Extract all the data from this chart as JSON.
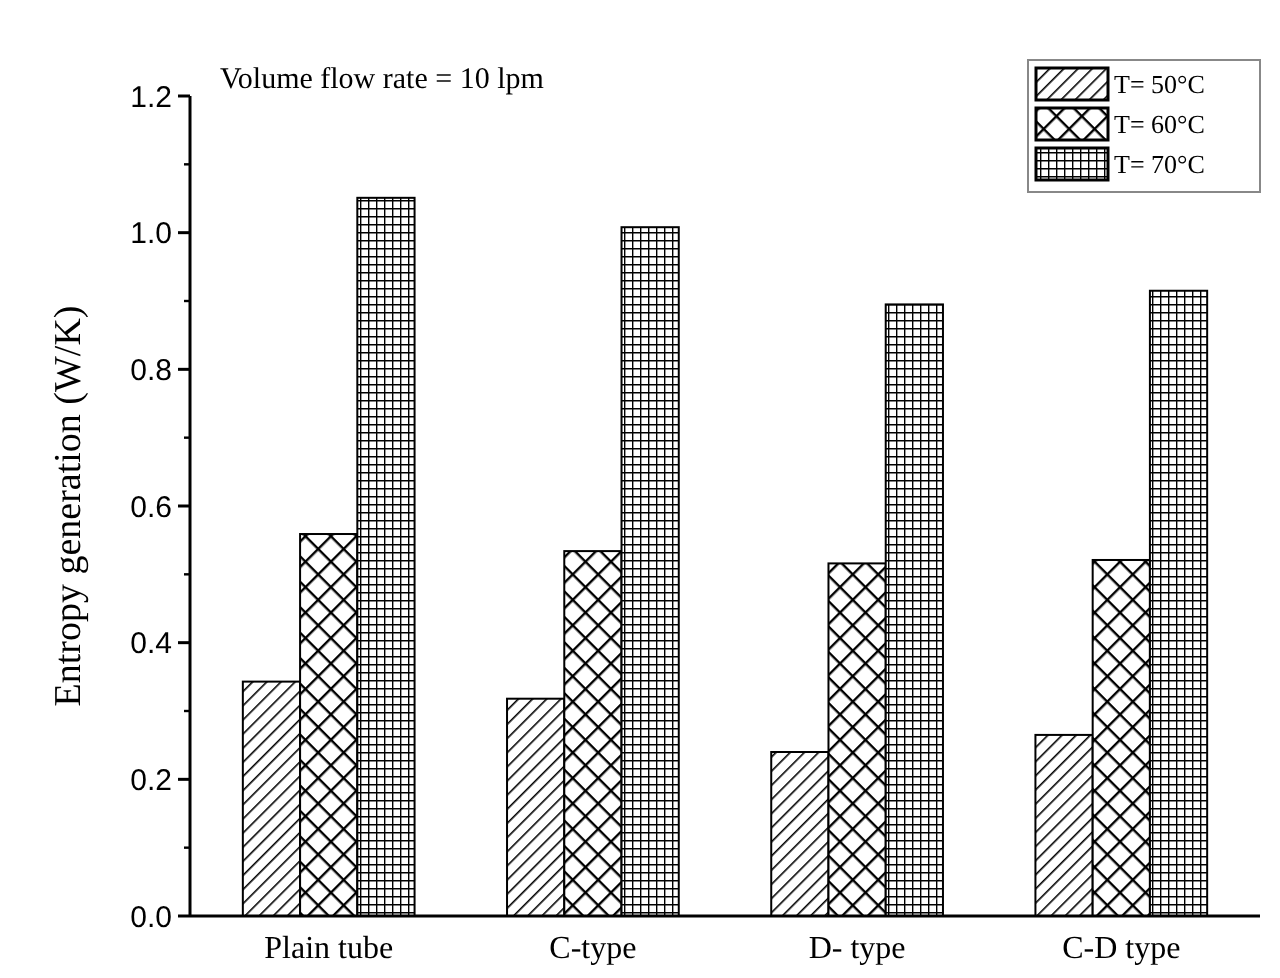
{
  "chart_data": {
    "type": "bar",
    "ylabel": "Entropy generation (W/K)",
    "categories": [
      "Plain tube",
      "C-type",
      "D- type",
      "C-D type"
    ],
    "series": [
      {
        "name": "T= 50°C",
        "color": "#000000",
        "values": [
          0.343,
          0.318,
          0.24,
          0.265
        ]
      },
      {
        "name": "T= 60°C",
        "color": "#000000",
        "values": [
          0.559,
          0.534,
          0.516,
          0.521
        ]
      },
      {
        "name": "T= 70°C",
        "color": "#000000",
        "values": [
          1.051,
          1.008,
          0.895,
          0.915
        ]
      }
    ],
    "ylim": [
      0,
      1.2
    ],
    "yticks": [
      {
        "value": 0,
        "label": "0.0"
      },
      {
        "value": 0.2,
        "label": "0.2"
      },
      {
        "value": 0.4,
        "label": "0.4"
      },
      {
        "value": 0.6,
        "label": "0.6"
      },
      {
        "value": 0.8,
        "label": "0.8"
      },
      {
        "value": 1,
        "label": "1.0"
      },
      {
        "value": 1.2,
        "label": "1.2"
      }
    ],
    "annotations": [
      "Volume flow rate = 10 lpm"
    ],
    "legend": "top right",
    "grid": false
  }
}
